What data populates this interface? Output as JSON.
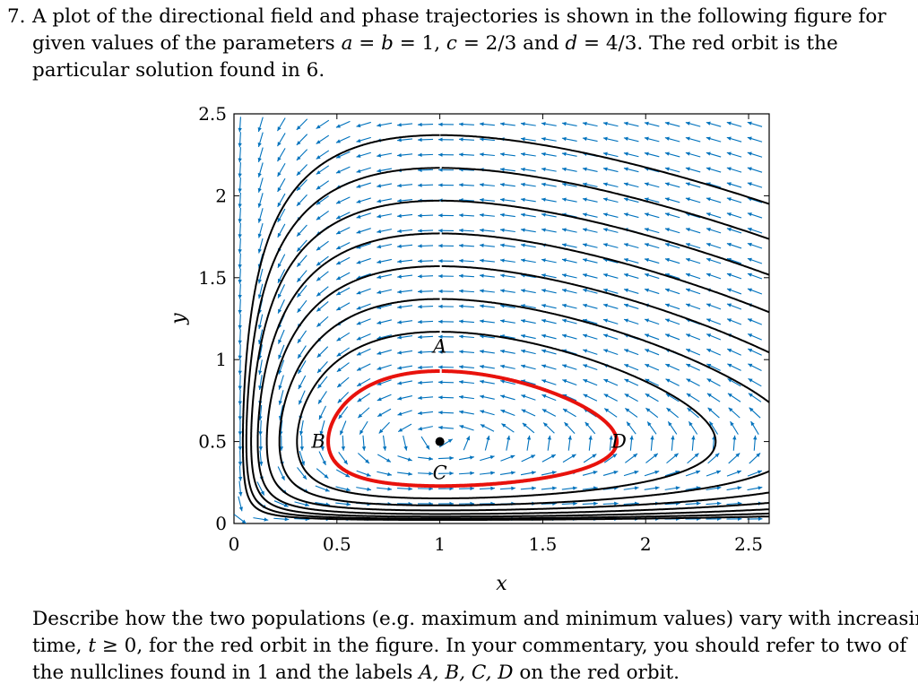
{
  "problem": {
    "number": "7.",
    "intro_line1": "A plot of the directional field and phase trajectories is shown in the following figure for",
    "intro_line2_parts": [
      "given values of the parameters",
      "a",
      "=",
      "b",
      "= 1,",
      "c",
      "= 2/3 and",
      "d",
      "= 4/3.",
      "The red orbit is the"
    ],
    "intro_line3": "particular solution found in 6.",
    "question_line1": "Describe how the two populations (e.g. maximum and minimum values) vary with increasing",
    "question_line2_parts": [
      "time,",
      "t",
      "≥ 0, for the red orbit in the figure. In your commentary, you should refer to two of"
    ],
    "question_line3_parts": [
      "the nullclines found in 1 and the labels",
      "A, B, C, D",
      "on the red orbit."
    ]
  },
  "chart_data": {
    "type": "phase-portrait",
    "xlabel": "x",
    "ylabel": "y",
    "xlim": [
      0,
      2.6
    ],
    "ylim": [
      0,
      2.5
    ],
    "xticks": [
      0,
      0.5,
      1,
      1.5,
      2,
      2.5
    ],
    "xtick_labels": [
      "0",
      "0.5",
      "1",
      "1.5",
      "2",
      "2.5"
    ],
    "yticks": [
      0,
      0.5,
      1,
      1.5,
      2,
      2.5
    ],
    "ytick_labels": [
      "0",
      "0.5",
      "1",
      "1.5",
      "2",
      "2.5"
    ],
    "parameters": {
      "a": 1,
      "b": 1,
      "c": 0.6667,
      "d": 1.3333
    },
    "equilibrium": {
      "x": 1,
      "y": 0.5
    },
    "orbit_labels": [
      {
        "label": "A",
        "x": 1.0,
        "y": 1.08
      },
      {
        "label": "B",
        "x": 0.41,
        "y": 0.5
      },
      {
        "label": "C",
        "x": 1.0,
        "y": 0.31
      },
      {
        "label": "D",
        "x": 1.87,
        "y": 0.5
      }
    ],
    "red_orbit_start": {
      "x": 1.0,
      "y": 0.93
    },
    "black_orbit_starts": [
      {
        "x": 1.0,
        "y": 1.17
      },
      {
        "x": 1.0,
        "y": 1.37
      },
      {
        "x": 1.0,
        "y": 1.57
      },
      {
        "x": 1.0,
        "y": 1.77
      },
      {
        "x": 1.0,
        "y": 1.97
      },
      {
        "x": 1.0,
        "y": 2.17
      },
      {
        "x": 1.0,
        "y": 2.37
      }
    ],
    "colors": {
      "field_arrows": "#0072bd",
      "red_orbit": "#e8120c",
      "black_orbits": "#000000"
    }
  }
}
